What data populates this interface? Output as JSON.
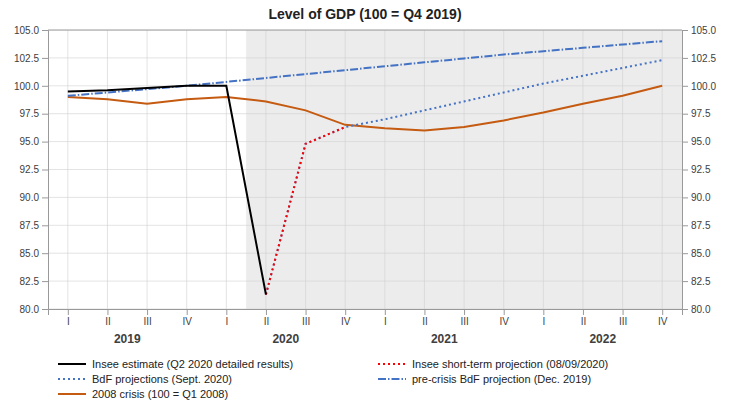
{
  "chart_data": {
    "type": "line",
    "title": "Level of GDP (100 = Q4 2019)",
    "x": [
      0,
      1,
      2,
      3,
      4,
      5,
      6,
      7,
      8,
      9,
      10,
      11,
      12,
      13,
      14,
      15
    ],
    "xlim": [
      -0.5,
      15.5
    ],
    "xticks": [
      {
        "value": 0,
        "label": "I"
      },
      {
        "value": 1,
        "label": "II"
      },
      {
        "value": 2,
        "label": "III"
      },
      {
        "value": 3,
        "label": "IV"
      },
      {
        "value": 4,
        "label": "I"
      },
      {
        "value": 5,
        "label": "II"
      },
      {
        "value": 6,
        "label": "III"
      },
      {
        "value": 7,
        "label": "IV"
      },
      {
        "value": 8,
        "label": "I"
      },
      {
        "value": 9,
        "label": "II"
      },
      {
        "value": 10,
        "label": "III"
      },
      {
        "value": 11,
        "label": "IV"
      },
      {
        "value": 12,
        "label": "I"
      },
      {
        "value": 13,
        "label": "II"
      },
      {
        "value": 14,
        "label": "III"
      },
      {
        "value": 15,
        "label": "IV"
      }
    ],
    "ylim": [
      80.0,
      105.0
    ],
    "yticks": [
      {
        "value": 80.0,
        "label": "80.0"
      },
      82.5,
      {
        "value": 85.0,
        "label": "85.0"
      },
      87.5,
      {
        "value": 90.0,
        "label": "90.0"
      },
      92.5,
      {
        "value": 95.0,
        "label": "95.0"
      },
      97.5,
      {
        "value": 100.0,
        "label": "100.0"
      },
      102.5,
      {
        "value": 105.0,
        "label": "105.0"
      }
    ],
    "y2lim": [
      80.0,
      105.0
    ],
    "y2ticks": [
      {
        "value": 80.0,
        "label": "80.0"
      },
      82.5,
      {
        "value": 85.0,
        "label": "85.0"
      },
      87.5,
      {
        "value": 90.0,
        "label": "90.0"
      },
      92.5,
      {
        "value": 95.0,
        "label": "95.0"
      },
      97.5,
      {
        "value": 100.0,
        "label": "100.0"
      },
      102.5,
      {
        "value": 105.0,
        "label": "105.0"
      }
    ],
    "annotations": [
      {
        "text": "2019",
        "x": 1.5
      },
      {
        "text": "2020",
        "x": 5.5
      },
      {
        "text": "2021",
        "x": 9.5
      },
      {
        "text": "2022",
        "x": 13.5
      }
    ],
    "shade_x": [
      4.5,
      15.5
    ],
    "grid": true,
    "legend": "bottom",
    "series": [
      {
        "name": "Insee estimate (Q2 2020 detailed results)",
        "color": "#000000",
        "line_style": "solid",
        "values": [
          99.5,
          99.6,
          99.8,
          100.0,
          100.0,
          81.3,
          null,
          null,
          null,
          null,
          null,
          null,
          null,
          null,
          null,
          null
        ]
      },
      {
        "name": "Insee short-term projection (08/09/2020)",
        "color": "#ff0000",
        "line_style": "dotted",
        "values": [
          null,
          null,
          null,
          null,
          null,
          81.3,
          94.8,
          96.3,
          null,
          null,
          null,
          null,
          null,
          null,
          null,
          null
        ]
      },
      {
        "name": "BdF projections (Sept. 2020)",
        "color": "#4472c4",
        "line_style": "dotted",
        "values": [
          null,
          null,
          null,
          null,
          null,
          81.3,
          94.8,
          96.3,
          97.0,
          97.8,
          98.6,
          99.4,
          100.2,
          100.9,
          101.6,
          102.3
        ]
      },
      {
        "name": "pre-crisis BdF projection (Dec. 2019)",
        "color": "#4472c4",
        "line_style": "dashdot",
        "values": [
          99.1,
          99.4,
          99.7,
          100.0,
          100.35,
          100.7,
          101.05,
          101.4,
          101.75,
          102.1,
          102.45,
          102.8,
          103.1,
          103.4,
          103.7,
          104.0
        ]
      },
      {
        "name": "2008 crisis (100 = Q1 2008)",
        "color": "#c55a11",
        "line_style": "solid",
        "values": [
          99.0,
          98.8,
          98.4,
          98.8,
          99.0,
          98.6,
          97.8,
          96.5,
          96.2,
          96.0,
          96.3,
          96.9,
          97.6,
          98.4,
          99.1,
          100.0
        ]
      }
    ]
  }
}
